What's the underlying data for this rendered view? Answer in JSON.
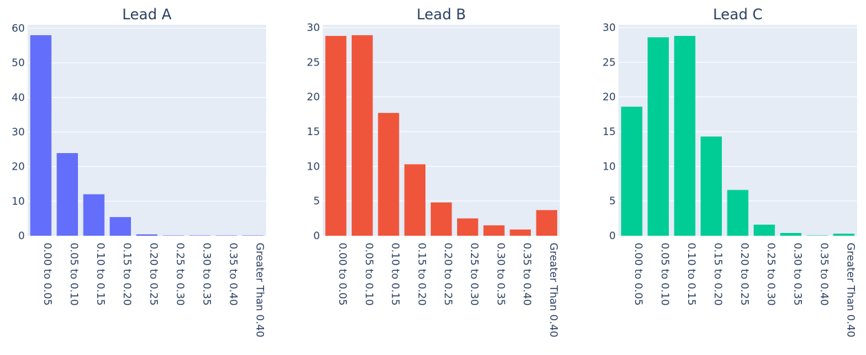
{
  "chart_data": [
    {
      "type": "bar",
      "title": "Lead A",
      "color": "#636efa",
      "categories": [
        "0.00 to 0.05",
        "0.05 to 0.10",
        "0.10 to 0.15",
        "0.15 to 0.20",
        "0.20 to 0.25",
        "0.25 to 0.30",
        "0.30 to 0.35",
        "0.35 to 0.40",
        "Greater Than 0.40"
      ],
      "values": [
        58,
        23.9,
        12,
        5.4,
        0.4,
        0.1,
        0.1,
        0.1,
        0.1
      ],
      "yticks": [
        0,
        10,
        20,
        30,
        40,
        50,
        60
      ],
      "ylim": [
        0,
        61
      ],
      "grid": true
    },
    {
      "type": "bar",
      "title": "Lead B",
      "color": "#ef553b",
      "categories": [
        "0.00 to 0.05",
        "0.05 to 0.10",
        "0.10 to 0.15",
        "0.15 to 0.20",
        "0.20 to 0.25",
        "0.25 to 0.30",
        "0.30 to 0.35",
        "0.35 to 0.40",
        "Greater Than 0.40"
      ],
      "values": [
        28.8,
        28.9,
        17.7,
        10.3,
        4.8,
        2.5,
        1.5,
        0.9,
        3.7
      ],
      "yticks": [
        0,
        5,
        10,
        15,
        20,
        25,
        30
      ],
      "ylim": [
        0,
        30.4
      ],
      "grid": true
    },
    {
      "type": "bar",
      "title": "Lead C",
      "color": "#00cc96",
      "categories": [
        "0.00 to 0.05",
        "0.05 to 0.10",
        "0.10 to 0.15",
        "0.15 to 0.20",
        "0.20 to 0.25",
        "0.25 to 0.30",
        "0.30 to 0.35",
        "0.35 to 0.40",
        "Greater Than 0.40"
      ],
      "values": [
        18.6,
        28.6,
        28.8,
        14.3,
        6.6,
        1.6,
        0.4,
        0.05,
        0.3
      ],
      "yticks": [
        0,
        5,
        10,
        15,
        20,
        25,
        30
      ],
      "ylim": [
        0,
        30.4
      ],
      "grid": true
    }
  ]
}
